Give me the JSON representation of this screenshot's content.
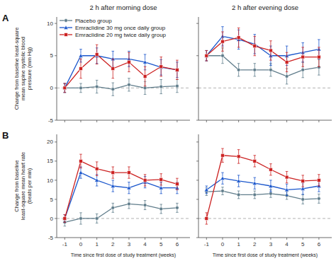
{
  "chart_data": [
    {
      "type": "line",
      "title": "2 h after morning dose",
      "panel_label": "A",
      "y_label": "Change from baseline least-square\nmean supine systolic blood\npressure (mm Hg)",
      "x": [
        -1,
        0,
        1,
        2,
        3,
        4,
        5,
        6
      ],
      "xlim": [
        -1.5,
        6.8
      ],
      "xticks": [
        -1,
        0,
        1,
        2,
        3,
        4,
        5,
        6
      ],
      "ylim": [
        -5,
        11
      ],
      "yticks": [
        -5,
        0,
        5,
        10
      ],
      "legend": "upper left",
      "tick_labels": "y",
      "reference_line": {
        "y": 0,
        "line_style": "dashed",
        "color": "#aaaaaa"
      },
      "series": [
        {
          "name": "Placebo group",
          "color": "#607d8b",
          "marker": "circle",
          "values": [
            0.0,
            0.0,
            0.2,
            -0.2,
            0.5,
            0.0,
            0.2,
            0.3
          ],
          "errors": [
            0.7,
            0.7,
            1.0,
            1.0,
            1.0,
            1.0,
            1.1,
            1.0
          ]
        },
        {
          "name": "Emraclidine 30 mg once daily group",
          "color": "#1a56cc",
          "marker": "triangle",
          "values": [
            0.0,
            5.0,
            5.0,
            4.5,
            4.5,
            4.0,
            3.2,
            2.8
          ],
          "errors": [
            0.7,
            1.0,
            1.2,
            1.2,
            1.2,
            1.2,
            1.2,
            1.2
          ]
        },
        {
          "name": "Emraclidine 20 mg twice daily group",
          "color": "#cc2222",
          "marker": "square",
          "values": [
            0.0,
            3.0,
            5.2,
            3.0,
            4.0,
            1.8,
            3.3,
            2.8
          ],
          "errors": [
            0.7,
            1.5,
            1.5,
            1.5,
            1.5,
            1.5,
            1.5,
            1.5
          ]
        }
      ]
    },
    {
      "type": "line",
      "title": "2 h after evening dose",
      "x": [
        -1,
        0,
        1,
        2,
        3,
        4,
        5,
        6
      ],
      "xlim": [
        -1.5,
        6.8
      ],
      "xticks": [
        -1,
        0,
        1,
        2,
        3,
        4,
        5,
        6
      ],
      "ylim": [
        -5,
        11
      ],
      "yticks": [
        -5,
        0,
        5,
        10
      ],
      "tick_labels": false,
      "reference_line": {
        "y": 0,
        "line_style": "dashed",
        "color": "#aaaaaa"
      },
      "series": [
        {
          "color": "#607d8b",
          "marker": "circle",
          "values": [
            5.0,
            5.0,
            2.8,
            2.8,
            2.8,
            1.8,
            2.8,
            3.2
          ],
          "errors": [
            0.8,
            1.2,
            1.0,
            1.0,
            1.0,
            1.2,
            1.2,
            1.2
          ]
        },
        {
          "color": "#1a56cc",
          "marker": "triangle",
          "values": [
            5.0,
            8.0,
            7.5,
            6.8,
            5.0,
            5.0,
            5.5,
            6.0
          ],
          "errors": [
            0.8,
            1.5,
            1.5,
            1.5,
            1.5,
            1.5,
            1.5,
            1.5
          ]
        },
        {
          "color": "#cc2222",
          "marker": "square",
          "values": [
            5.0,
            7.2,
            7.8,
            6.5,
            5.8,
            4.0,
            4.8,
            4.8
          ],
          "errors": [
            0.8,
            1.5,
            1.5,
            1.5,
            1.5,
            1.5,
            1.5,
            1.5
          ]
        }
      ]
    },
    {
      "type": "line",
      "panel_label": "B",
      "y_label": "Change from baseline\nleast-square mean heart rate\n(beats per min)",
      "x_label": "Time since first dose of study treatment (weeks)",
      "x": [
        -1,
        0,
        1,
        2,
        3,
        4,
        5,
        6
      ],
      "xlim": [
        -1.5,
        6.8
      ],
      "xticks": [
        -1,
        0,
        1,
        2,
        3,
        4,
        5,
        6
      ],
      "ylim": [
        -5,
        22
      ],
      "yticks": [
        -5,
        0,
        5,
        10,
        15,
        20
      ],
      "reference_line": {
        "y": 0,
        "line_style": "dashed",
        "color": "#aaaaaa"
      },
      "series": [
        {
          "color": "#607d8b",
          "marker": "circle",
          "values": [
            -1.0,
            0.0,
            0.0,
            2.8,
            3.8,
            3.5,
            2.5,
            2.8
          ],
          "errors": [
            1.0,
            1.5,
            1.2,
            1.2,
            1.2,
            1.2,
            1.2,
            1.2
          ]
        },
        {
          "color": "#1a56cc",
          "marker": "triangle",
          "values": [
            0.0,
            12.0,
            10.0,
            8.5,
            8.0,
            9.5,
            8.0,
            8.0
          ],
          "errors": [
            1.0,
            1.5,
            1.5,
            1.5,
            1.5,
            1.5,
            1.5,
            1.5
          ]
        },
        {
          "color": "#cc2222",
          "marker": "square",
          "values": [
            0.0,
            15.0,
            13.0,
            12.0,
            12.0,
            10.0,
            10.2,
            9.0
          ],
          "errors": [
            1.0,
            1.8,
            1.8,
            1.5,
            1.5,
            1.5,
            1.5,
            1.5
          ]
        }
      ]
    },
    {
      "type": "line",
      "x_label": "Time since first dose of study treatment (weeks)",
      "x": [
        -1,
        0,
        1,
        2,
        3,
        4,
        5,
        6
      ],
      "xlim": [
        -1.5,
        6.8
      ],
      "xticks": [
        -1,
        0,
        1,
        2,
        3,
        4,
        5,
        6
      ],
      "ylim": [
        -5,
        22
      ],
      "yticks": [
        -5,
        0,
        5,
        10,
        15,
        20
      ],
      "tick_labels": "x",
      "reference_line": {
        "y": 0,
        "line_style": "dashed",
        "color": "#aaaaaa"
      },
      "series": [
        {
          "color": "#607d8b",
          "marker": "circle",
          "values": [
            7.0,
            7.2,
            6.2,
            6.2,
            6.5,
            6.0,
            5.0,
            5.2
          ],
          "errors": [
            1.0,
            1.0,
            1.0,
            1.0,
            1.0,
            1.0,
            1.2,
            1.2
          ]
        },
        {
          "color": "#1a56cc",
          "marker": "triangle",
          "values": [
            7.5,
            10.5,
            9.8,
            9.2,
            8.5,
            7.5,
            7.8,
            8.5
          ],
          "errors": [
            1.0,
            1.5,
            1.5,
            1.5,
            1.5,
            1.5,
            1.5,
            1.5
          ]
        },
        {
          "color": "#cc2222",
          "marker": "square",
          "values": [
            0.0,
            16.5,
            16.2,
            15.0,
            12.8,
            10.8,
            9.8,
            10.0
          ],
          "errors": [
            1.5,
            1.8,
            1.8,
            1.5,
            1.5,
            1.5,
            1.5,
            1.5
          ]
        }
      ]
    }
  ]
}
